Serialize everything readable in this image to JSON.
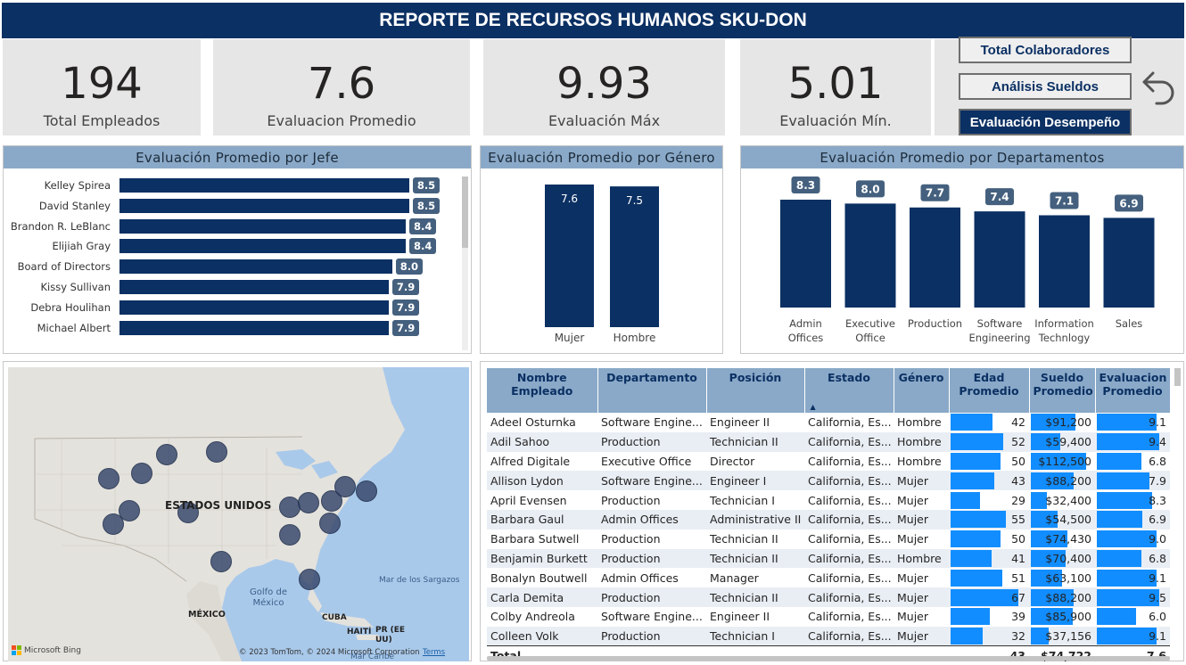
{
  "title": "REPORTE DE RECURSOS HUMANOS SKU-DON",
  "kpis": [
    {
      "value": "194",
      "label": "Total Empleados"
    },
    {
      "value": "7.6",
      "label": "Evaluacion Promedio"
    },
    {
      "value": "9.93",
      "label": "Evaluación Máx"
    },
    {
      "value": "5.01",
      "label": "Evaluación Mín."
    }
  ],
  "nav": {
    "total": "Total Colaboradores",
    "sueldos": "Análisis Sueldos",
    "desempeno": "Evaluación Desempeño",
    "back_icon": "back-arrow-icon"
  },
  "panels": {
    "jefe_title": "Evaluación Promedio por Jefe",
    "genero_title": "Evaluación Promedio por Género",
    "depto_title": "Evaluación Promedio por Departamentos"
  },
  "chart_data": [
    {
      "type": "bar",
      "title": "Evaluación Promedio por Jefe",
      "categories": [
        "Kelley Spirea",
        "David Stanley",
        "Brandon R. LeBlanc",
        "Elijiah Gray",
        "Board of Directors",
        "Kissy Sullivan",
        "Debra Houlihan",
        "Michael Albert"
      ],
      "values": [
        8.5,
        8.5,
        8.4,
        8.4,
        8.0,
        7.9,
        7.9,
        7.9
      ],
      "labels": [
        "8.5",
        "8.5",
        "8.4",
        "8.4",
        "8.0",
        "7.9",
        "7.9",
        "7.9"
      ]
    },
    {
      "type": "bar",
      "title": "Evaluación Promedio por Género",
      "categories": [
        "Mujer",
        "Hombre"
      ],
      "values": [
        7.6,
        7.5
      ],
      "labels": [
        "7.6",
        "7.5"
      ]
    },
    {
      "type": "bar",
      "title": "Evaluación Promedio por Departamentos",
      "categories": [
        "Admin Offices",
        "Executive Office",
        "Production",
        "Software Engineering",
        "Information Technlogy",
        "Sales"
      ],
      "cat_lines": [
        [
          "Admin",
          "Offices"
        ],
        [
          "Executive",
          "Office"
        ],
        [
          "Production"
        ],
        [
          "Software",
          "Engineering"
        ],
        [
          "Information",
          "Technlogy"
        ],
        [
          "Sales"
        ]
      ],
      "values": [
        8.3,
        8.0,
        7.7,
        7.4,
        7.1,
        6.9
      ],
      "labels": [
        "8.3",
        "8.0",
        "7.7",
        "7.4",
        "7.1",
        "6.9"
      ]
    }
  ],
  "map": {
    "country_label": "ESTADOS UNIDOS",
    "labels": {
      "gulf": "Golfo de México",
      "sargazos": "Mar de los Sargazos",
      "mexico": "MÉXICO",
      "cuba": "CUBA",
      "haiti": "HAITÍ",
      "pr": "PR (EE UU)",
      "caribe": "Mar Caribe"
    },
    "bing": "Microsoft Bing",
    "copyright": "© 2023 TomTom, © 2024 Microsoft Corporation",
    "terms": "Terms"
  },
  "table": {
    "headers": [
      "Nombre Empleado",
      "Departamento",
      "Posición",
      "Estado",
      "Género",
      "Edad Promedio",
      "Sueldo Promedio",
      "Evaluacion Promedio"
    ],
    "rows": [
      [
        "Adeel Osturnka",
        "Software Engine...",
        "Engineer II",
        "California, Es...",
        "Hombre",
        "42",
        "$91,200",
        "9.1"
      ],
      [
        "Adil Sahoo",
        "Production",
        "Technician II",
        "California, Es...",
        "Hombre",
        "52",
        "$59,400",
        "9.4"
      ],
      [
        "Alfred Digitale",
        "Executive Office",
        "Director",
        "California, Es...",
        "Hombre",
        "50",
        "$112,500",
        "6.8"
      ],
      [
        "Allison Lydon",
        "Software Engine...",
        "Engineer I",
        "California, Es...",
        "Mujer",
        "43",
        "$88,200",
        "7.9"
      ],
      [
        "April Evensen",
        "Production",
        "Technician I",
        "California, Es...",
        "Mujer",
        "29",
        "$32,400",
        "8.3"
      ],
      [
        "Barbara Gaul",
        "Admin Offices",
        "Administrative II",
        "California, Es...",
        "Mujer",
        "55",
        "$54,500",
        "6.9"
      ],
      [
        "Barbara Sutwell",
        "Production",
        "Technician II",
        "California, Es...",
        "Mujer",
        "50",
        "$74,430",
        "9.0"
      ],
      [
        "Benjamin Burkett",
        "Production",
        "Technician II",
        "California, Es...",
        "Hombre",
        "41",
        "$70,400",
        "6.8"
      ],
      [
        "Bonalyn Boutwell",
        "Admin Offices",
        "Manager",
        "California, Es...",
        "Mujer",
        "51",
        "$63,100",
        "9.1"
      ],
      [
        "Carla Demita",
        "Production",
        "Technician II",
        "California, Es...",
        "Mujer",
        "67",
        "$88,200",
        "9.5"
      ],
      [
        "Colby Andreola",
        "Software Engine...",
        "Engineer II",
        "California, Es...",
        "Mujer",
        "39",
        "$85,900",
        "6.0"
      ],
      [
        "Colleen Volk",
        "Production",
        "Technician I",
        "California, Es...",
        "Mujer",
        "32",
        "$37,156",
        "9.1"
      ]
    ],
    "bar_values": [
      [
        42,
        91200,
        9.1
      ],
      [
        52,
        59400,
        9.4
      ],
      [
        50,
        112500,
        6.8
      ],
      [
        43,
        88200,
        7.9
      ],
      [
        29,
        32400,
        8.3
      ],
      [
        55,
        54500,
        6.9
      ],
      [
        50,
        74430,
        9.0
      ],
      [
        41,
        70400,
        6.8
      ],
      [
        51,
        63100,
        9.1
      ],
      [
        67,
        88200,
        9.5
      ],
      [
        39,
        85900,
        6.0
      ],
      [
        32,
        37156,
        9.1
      ]
    ],
    "bar_max": [
      67,
      112500,
      9.5
    ],
    "total": {
      "label": "Total",
      "edad": "43",
      "sueldo": "$74,722",
      "eval": "7.6"
    }
  }
}
